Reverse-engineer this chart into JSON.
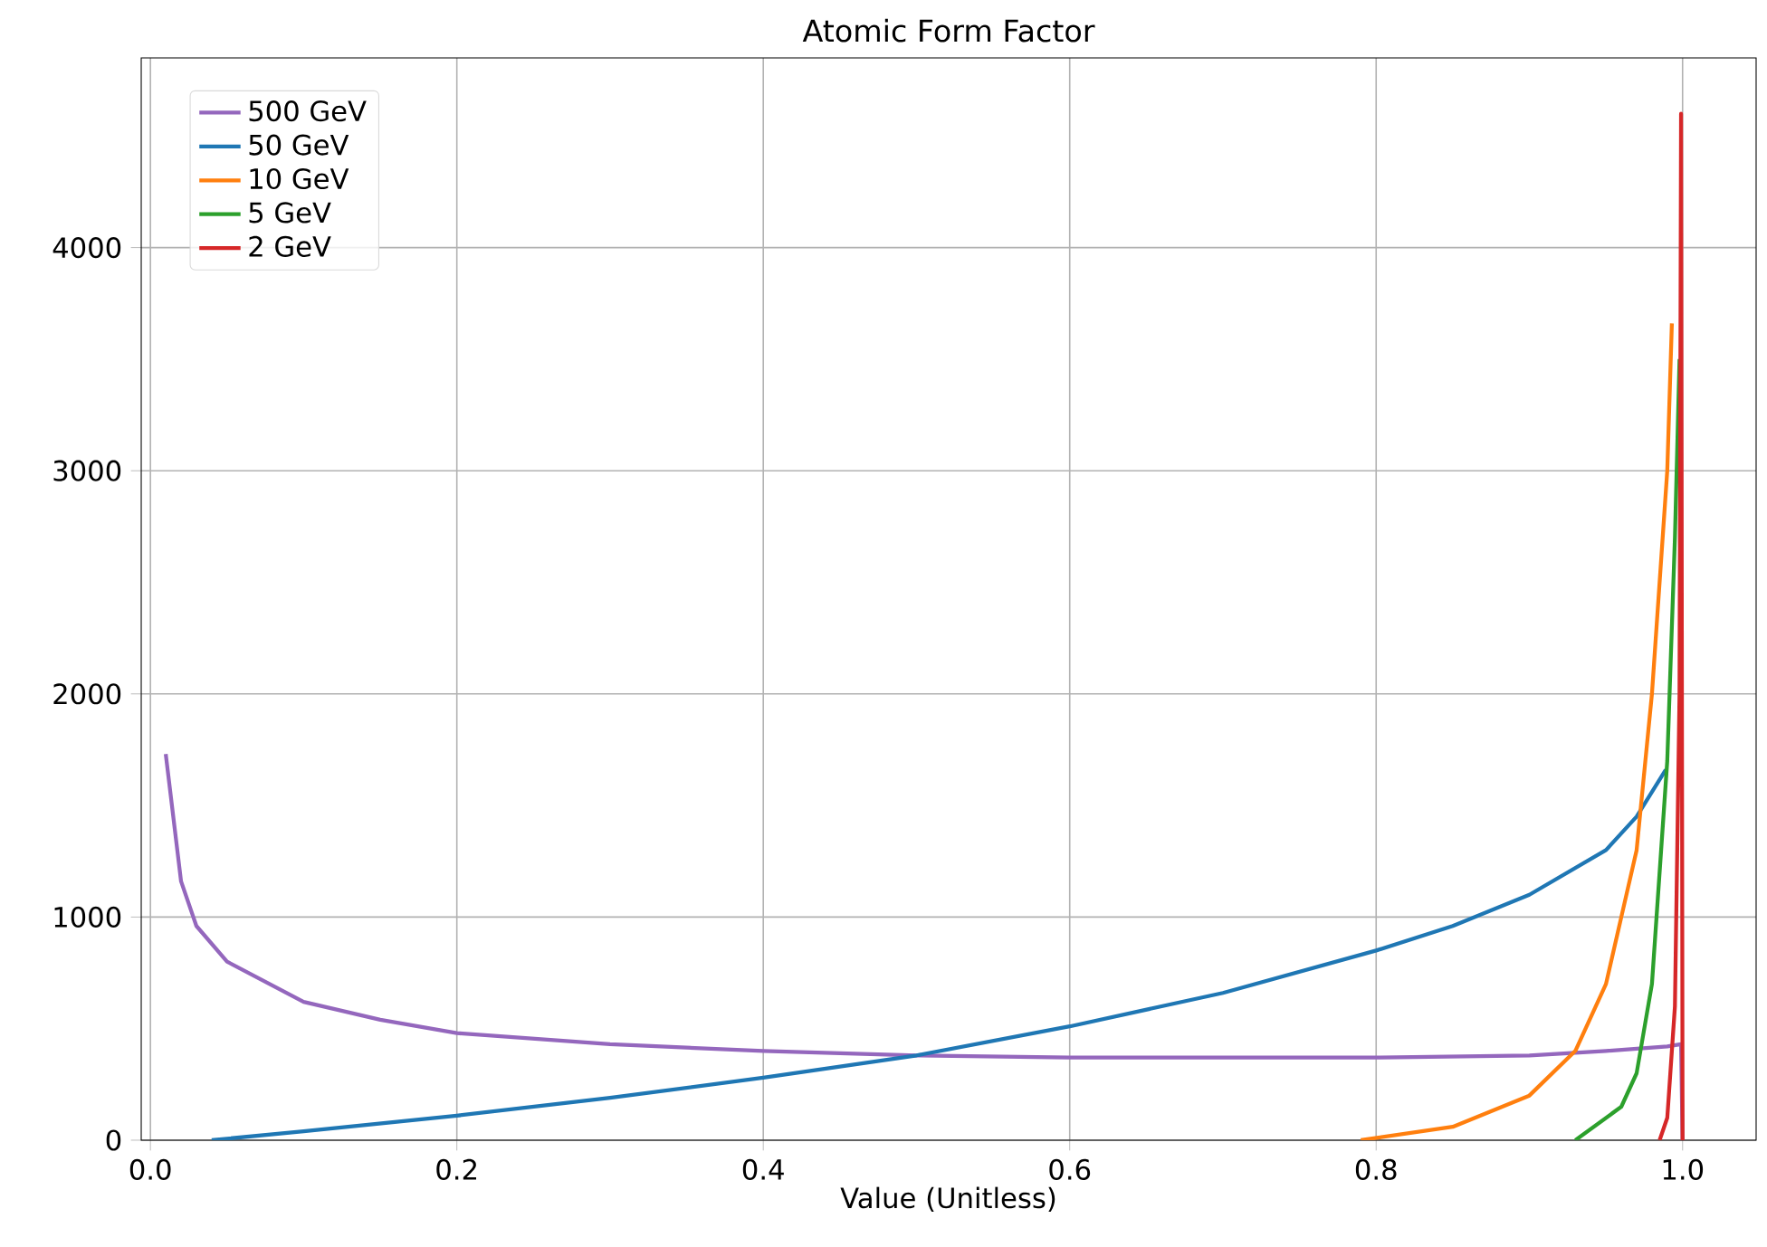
{
  "chart_data": {
    "type": "line",
    "title": "Atomic Form Factor",
    "xlabel": "Value (Unitless)",
    "xlim": [
      -0.006,
      1.048
    ],
    "ylim": [
      0,
      4850
    ],
    "xticks": [
      {
        "value": 0,
        "label": "0.0"
      },
      {
        "value": 0.2,
        "label": "0.2"
      },
      {
        "value": 0.4,
        "label": "0.4"
      },
      {
        "value": 0.6,
        "label": "0.6"
      },
      {
        "value": 0.8,
        "label": "0.8"
      },
      {
        "value": 1.0,
        "label": "1.0"
      }
    ],
    "yticks": [
      0,
      1000,
      2000,
      3000,
      4000
    ],
    "grid": true,
    "legend": "top left",
    "marker": "none",
    "line_style": "solid",
    "series": [
      {
        "name": "500 GeV",
        "color": "#9467bd",
        "x": [
          0.01,
          0.02,
          0.03,
          0.05,
          0.1,
          0.15,
          0.2,
          0.3,
          0.4,
          0.5,
          0.6,
          0.7,
          0.8,
          0.9,
          0.95,
          0.99,
          0.999,
          1.0
        ],
        "values": [
          1730,
          1160,
          960,
          800,
          620,
          540,
          480,
          430,
          400,
          380,
          370,
          370,
          370,
          380,
          400,
          420,
          430,
          0
        ]
      },
      {
        "name": "50 GeV",
        "color": "#1f77b4",
        "x": [
          0.04,
          0.1,
          0.2,
          0.3,
          0.4,
          0.5,
          0.6,
          0.7,
          0.8,
          0.85,
          0.9,
          0.95,
          0.97,
          0.989
        ],
        "values": [
          0,
          40,
          110,
          190,
          280,
          380,
          510,
          660,
          850,
          960,
          1100,
          1300,
          1450,
          1660
        ]
      },
      {
        "name": "10 GeV",
        "color": "#ff7f0e",
        "x": [
          0.79,
          0.85,
          0.9,
          0.93,
          0.95,
          0.96,
          0.97,
          0.98,
          0.99,
          0.993
        ],
        "values": [
          0,
          60,
          200,
          400,
          700,
          1000,
          1300,
          2000,
          3000,
          3660
        ]
      },
      {
        "name": "5 GeV",
        "color": "#2ca02c",
        "x": [
          0.93,
          0.96,
          0.97,
          0.98,
          0.99,
          0.995,
          0.998
        ],
        "values": [
          0,
          150,
          300,
          700,
          1700,
          2700,
          3500
        ]
      },
      {
        "name": "2 GeV",
        "color": "#d62728",
        "x": [
          0.985,
          0.99,
          0.995,
          0.998,
          0.999,
          1.0
        ],
        "values": [
          0,
          100,
          600,
          2000,
          4600,
          0
        ]
      }
    ]
  }
}
